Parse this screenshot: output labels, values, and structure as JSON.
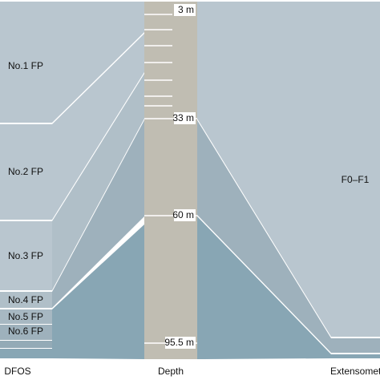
{
  "left": {
    "label": "DFOS",
    "blocks": [
      "No.1 FP",
      "No.2 FP",
      "No.3 FP",
      "No.4 FP",
      "No.5 FP",
      "No.6 FP"
    ]
  },
  "center": {
    "label": "Depth",
    "depths": [
      "3 m",
      "33 m",
      "60 m",
      "95.5 m"
    ]
  },
  "right": {
    "label": "Extensomet",
    "blocks": [
      "F0–F1"
    ]
  }
}
